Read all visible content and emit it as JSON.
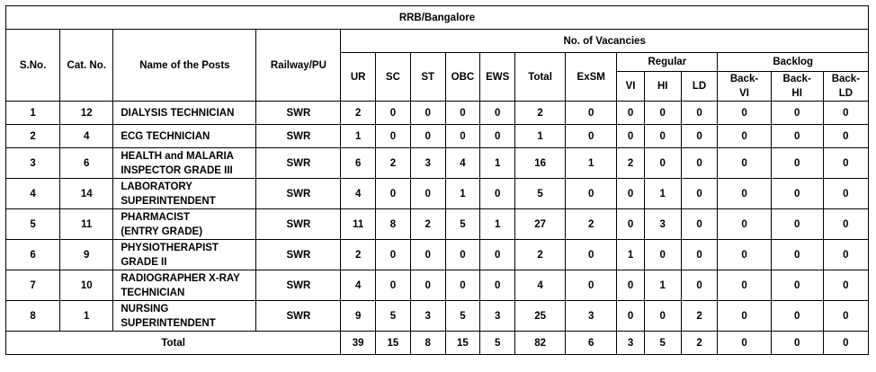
{
  "title": "RRB/Bangalore",
  "headers": {
    "sno": "S.No.",
    "cat_no": "Cat. No.",
    "name": "Name of the Posts",
    "railway": "Railway/PU",
    "vacancies": "No. of Vacancies",
    "ur": "UR",
    "sc": "SC",
    "st": "ST",
    "obc": "OBC",
    "ews": "EWS",
    "total": "Total",
    "exsm": "ExSM",
    "regular": "Regular",
    "backlog": "Backlog",
    "vi": "VI",
    "hi": "HI",
    "ld": "LD",
    "back_vi_1": "Back-",
    "back_vi_2": "VI",
    "back_hi_1": "Back-",
    "back_hi_2": "HI",
    "back_ld_1": "Back-",
    "back_ld_2": "LD"
  },
  "rows": [
    {
      "sno": "1",
      "cat": "12",
      "name1": "DIALYSIS TECHNICIAN",
      "name2": "",
      "rly": "SWR",
      "ur": "2",
      "sc": "0",
      "st": "0",
      "obc": "0",
      "ews": "0",
      "total": "2",
      "exsm": "0",
      "vi": "0",
      "hi": "0",
      "ld": "0",
      "bvi": "0",
      "bhi": "0",
      "bld": "0"
    },
    {
      "sno": "2",
      "cat": "4",
      "name1": "ECG TECHNICIAN",
      "name2": "",
      "rly": "SWR",
      "ur": "1",
      "sc": "0",
      "st": "0",
      "obc": "0",
      "ews": "0",
      "total": "1",
      "exsm": "0",
      "vi": "0",
      "hi": "0",
      "ld": "0",
      "bvi": "0",
      "bhi": "0",
      "bld": "0"
    },
    {
      "sno": "3",
      "cat": "6",
      "name1": "HEALTH and MALARIA",
      "name2": "INSPECTOR GRADE III",
      "rly": "SWR",
      "ur": "6",
      "sc": "2",
      "st": "3",
      "obc": "4",
      "ews": "1",
      "total": "16",
      "exsm": "1",
      "vi": "2",
      "hi": "0",
      "ld": "0",
      "bvi": "0",
      "bhi": "0",
      "bld": "0"
    },
    {
      "sno": "4",
      "cat": "14",
      "name1": "LABORATORY",
      "name2": "SUPERINTENDENT",
      "rly": "SWR",
      "ur": "4",
      "sc": "0",
      "st": "0",
      "obc": "1",
      "ews": "0",
      "total": "5",
      "exsm": "0",
      "vi": "0",
      "hi": "1",
      "ld": "0",
      "bvi": "0",
      "bhi": "0",
      "bld": "0"
    },
    {
      "sno": "5",
      "cat": "11",
      "name1": "PHARMACIST",
      "name2": "(ENTRY GRADE)",
      "rly": "SWR",
      "ur": "11",
      "sc": "8",
      "st": "2",
      "obc": "5",
      "ews": "1",
      "total": "27",
      "exsm": "2",
      "vi": "0",
      "hi": "3",
      "ld": "0",
      "bvi": "0",
      "bhi": "0",
      "bld": "0"
    },
    {
      "sno": "6",
      "cat": "9",
      "name1": "PHYSIOTHERAPIST",
      "name2": "GRADE II",
      "rly": "SWR",
      "ur": "2",
      "sc": "0",
      "st": "0",
      "obc": "0",
      "ews": "0",
      "total": "2",
      "exsm": "0",
      "vi": "1",
      "hi": "0",
      "ld": "0",
      "bvi": "0",
      "bhi": "0",
      "bld": "0"
    },
    {
      "sno": "7",
      "cat": "10",
      "name1": "RADIOGRAPHER X-RAY",
      "name2": "TECHNICIAN",
      "rly": "SWR",
      "ur": "4",
      "sc": "0",
      "st": "0",
      "obc": "0",
      "ews": "0",
      "total": "4",
      "exsm": "0",
      "vi": "0",
      "hi": "1",
      "ld": "0",
      "bvi": "0",
      "bhi": "0",
      "bld": "0"
    },
    {
      "sno": "8",
      "cat": "1",
      "name1": "NURSING",
      "name2": "SUPERINTENDENT",
      "rly": "SWR",
      "ur": "9",
      "sc": "5",
      "st": "3",
      "obc": "5",
      "ews": "3",
      "total": "25",
      "exsm": "3",
      "vi": "0",
      "hi": "0",
      "ld": "2",
      "bvi": "0",
      "bhi": "0",
      "bld": "0"
    }
  ],
  "totals": {
    "label": "Total",
    "ur": "39",
    "sc": "15",
    "st": "8",
    "obc": "15",
    "ews": "5",
    "total": "82",
    "exsm": "6",
    "vi": "3",
    "hi": "5",
    "ld": "2",
    "bvi": "0",
    "bhi": "0",
    "bld": "0"
  }
}
